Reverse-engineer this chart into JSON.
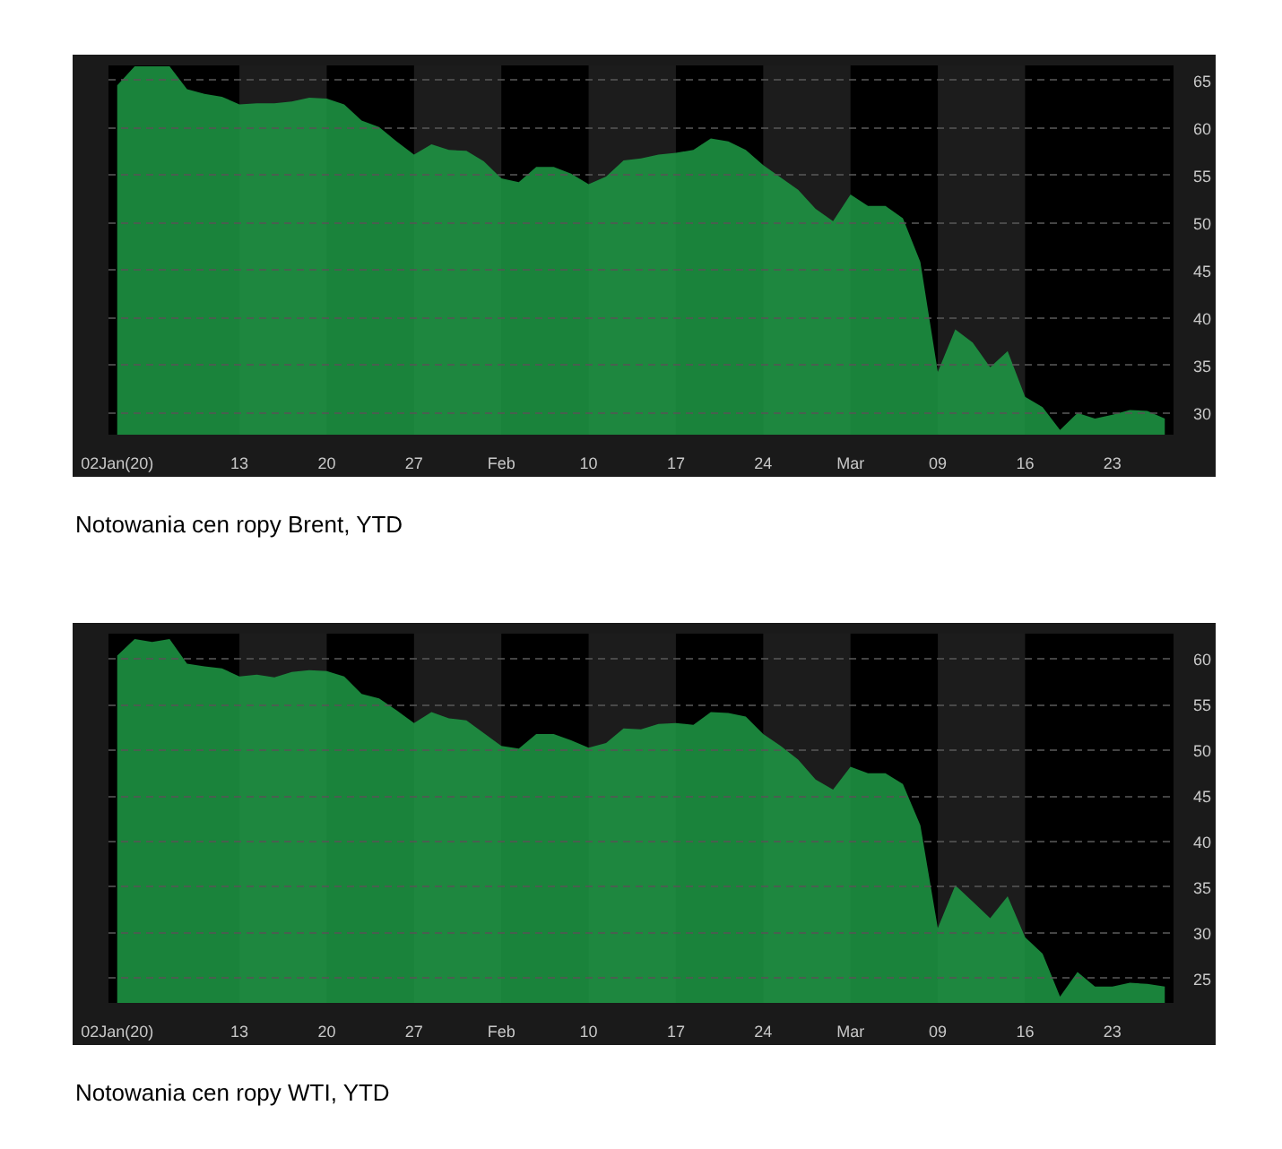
{
  "chart_data": [
    {
      "type": "area",
      "grid": "y",
      "categories": [
        "02Jan(20)",
        null,
        null,
        null,
        null,
        null,
        null,
        "13",
        null,
        null,
        null,
        null,
        "20",
        null,
        null,
        null,
        null,
        "27",
        null,
        null,
        null,
        null,
        "Feb",
        null,
        null,
        null,
        null,
        "10",
        null,
        null,
        null,
        null,
        "17",
        null,
        null,
        null,
        null,
        "24",
        null,
        null,
        null,
        null,
        "Mar",
        null,
        null,
        null,
        null,
        "09",
        null,
        null,
        null,
        null,
        "16",
        null,
        null,
        null,
        null,
        "23",
        null,
        null,
        null
      ],
      "series": [
        {
          "color": "#1f9a45",
          "values": [
            64.5,
            66.5,
            66.5,
            66.5,
            64.1,
            63.6,
            63.3,
            62.5,
            62.6,
            62.6,
            62.8,
            63.2,
            63.1,
            62.5,
            60.8,
            60.1,
            58.6,
            57.2,
            58.3,
            57.7,
            57.6,
            56.5,
            54.7,
            54.3,
            55.9,
            55.9,
            55.2,
            54.1,
            54.9,
            56.6,
            56.8,
            57.2,
            57.4,
            57.7,
            58.9,
            58.6,
            57.7,
            56.1,
            54.8,
            53.5,
            51.5,
            50.2,
            53.0,
            51.8,
            51.8,
            50.5,
            45.9,
            34.3,
            38.8,
            37.4,
            34.8,
            36.5,
            31.7,
            30.6,
            28.2,
            30.0,
            29.4,
            29.8,
            30.3,
            30.2,
            29.4
          ]
        }
      ],
      "ylim": [
        27.7,
        66.6
      ],
      "yticks": [
        30,
        35,
        40,
        45,
        50,
        55,
        60,
        65
      ],
      "bands": [
        {
          "axis": "x",
          "from": "13",
          "to": "20",
          "color": "#1c1c1c"
        },
        {
          "axis": "x",
          "from": "27",
          "to": "Feb",
          "color": "#1c1c1c"
        },
        {
          "axis": "x",
          "from": "10",
          "to": "17",
          "color": "#1c1c1c"
        },
        {
          "axis": "x",
          "from": "24",
          "to": "Mar",
          "color": "#1c1c1c"
        },
        {
          "axis": "x",
          "from": "09",
          "to": "16",
          "color": "#1c1c1c"
        }
      ],
      "annotations": [
        "Notowania cen ropy Brent, YTD"
      ]
    },
    {
      "type": "area",
      "grid": "y",
      "categories": [
        "02Jan(20)",
        null,
        null,
        null,
        null,
        null,
        null,
        "13",
        null,
        null,
        null,
        null,
        "20",
        null,
        null,
        null,
        null,
        "27",
        null,
        null,
        null,
        null,
        "Feb",
        null,
        null,
        null,
        null,
        "10",
        null,
        null,
        null,
        null,
        "17",
        null,
        null,
        null,
        null,
        "24",
        null,
        null,
        null,
        null,
        "Mar",
        null,
        null,
        null,
        null,
        "09",
        null,
        null,
        null,
        null,
        "16",
        null,
        null,
        null,
        null,
        "23",
        null,
        null,
        null
      ],
      "series": [
        {
          "color": "#1f9a45",
          "values": [
            60.4,
            62.2,
            61.9,
            62.2,
            59.5,
            59.2,
            59.0,
            58.1,
            58.3,
            58.0,
            58.6,
            58.8,
            58.7,
            58.1,
            56.2,
            55.7,
            54.4,
            53.0,
            54.2,
            53.5,
            53.3,
            51.9,
            50.5,
            50.2,
            51.8,
            51.8,
            51.1,
            50.3,
            50.8,
            52.4,
            52.3,
            52.9,
            53.0,
            52.8,
            54.2,
            54.1,
            53.7,
            51.8,
            50.5,
            49.0,
            46.8,
            45.7,
            48.2,
            47.5,
            47.5,
            46.3,
            41.8,
            30.5,
            35.2,
            33.4,
            31.6,
            34.0,
            29.5,
            27.7,
            23.0,
            25.7,
            24.1,
            24.1,
            24.5,
            24.4,
            24.1
          ]
        }
      ],
      "ylim": [
        22.3,
        62.8
      ],
      "yticks": [
        25,
        30,
        35,
        40,
        45,
        50,
        55,
        60
      ],
      "bands": [
        {
          "axis": "x",
          "from": "13",
          "to": "20",
          "color": "#1c1c1c"
        },
        {
          "axis": "x",
          "from": "27",
          "to": "Feb",
          "color": "#1c1c1c"
        },
        {
          "axis": "x",
          "from": "10",
          "to": "17",
          "color": "#1c1c1c"
        },
        {
          "axis": "x",
          "from": "24",
          "to": "Mar",
          "color": "#1c1c1c"
        },
        {
          "axis": "x",
          "from": "09",
          "to": "16",
          "color": "#1c1c1c"
        }
      ],
      "annotations": [
        "Notowania cen ropy WTI, YTD"
      ]
    }
  ]
}
